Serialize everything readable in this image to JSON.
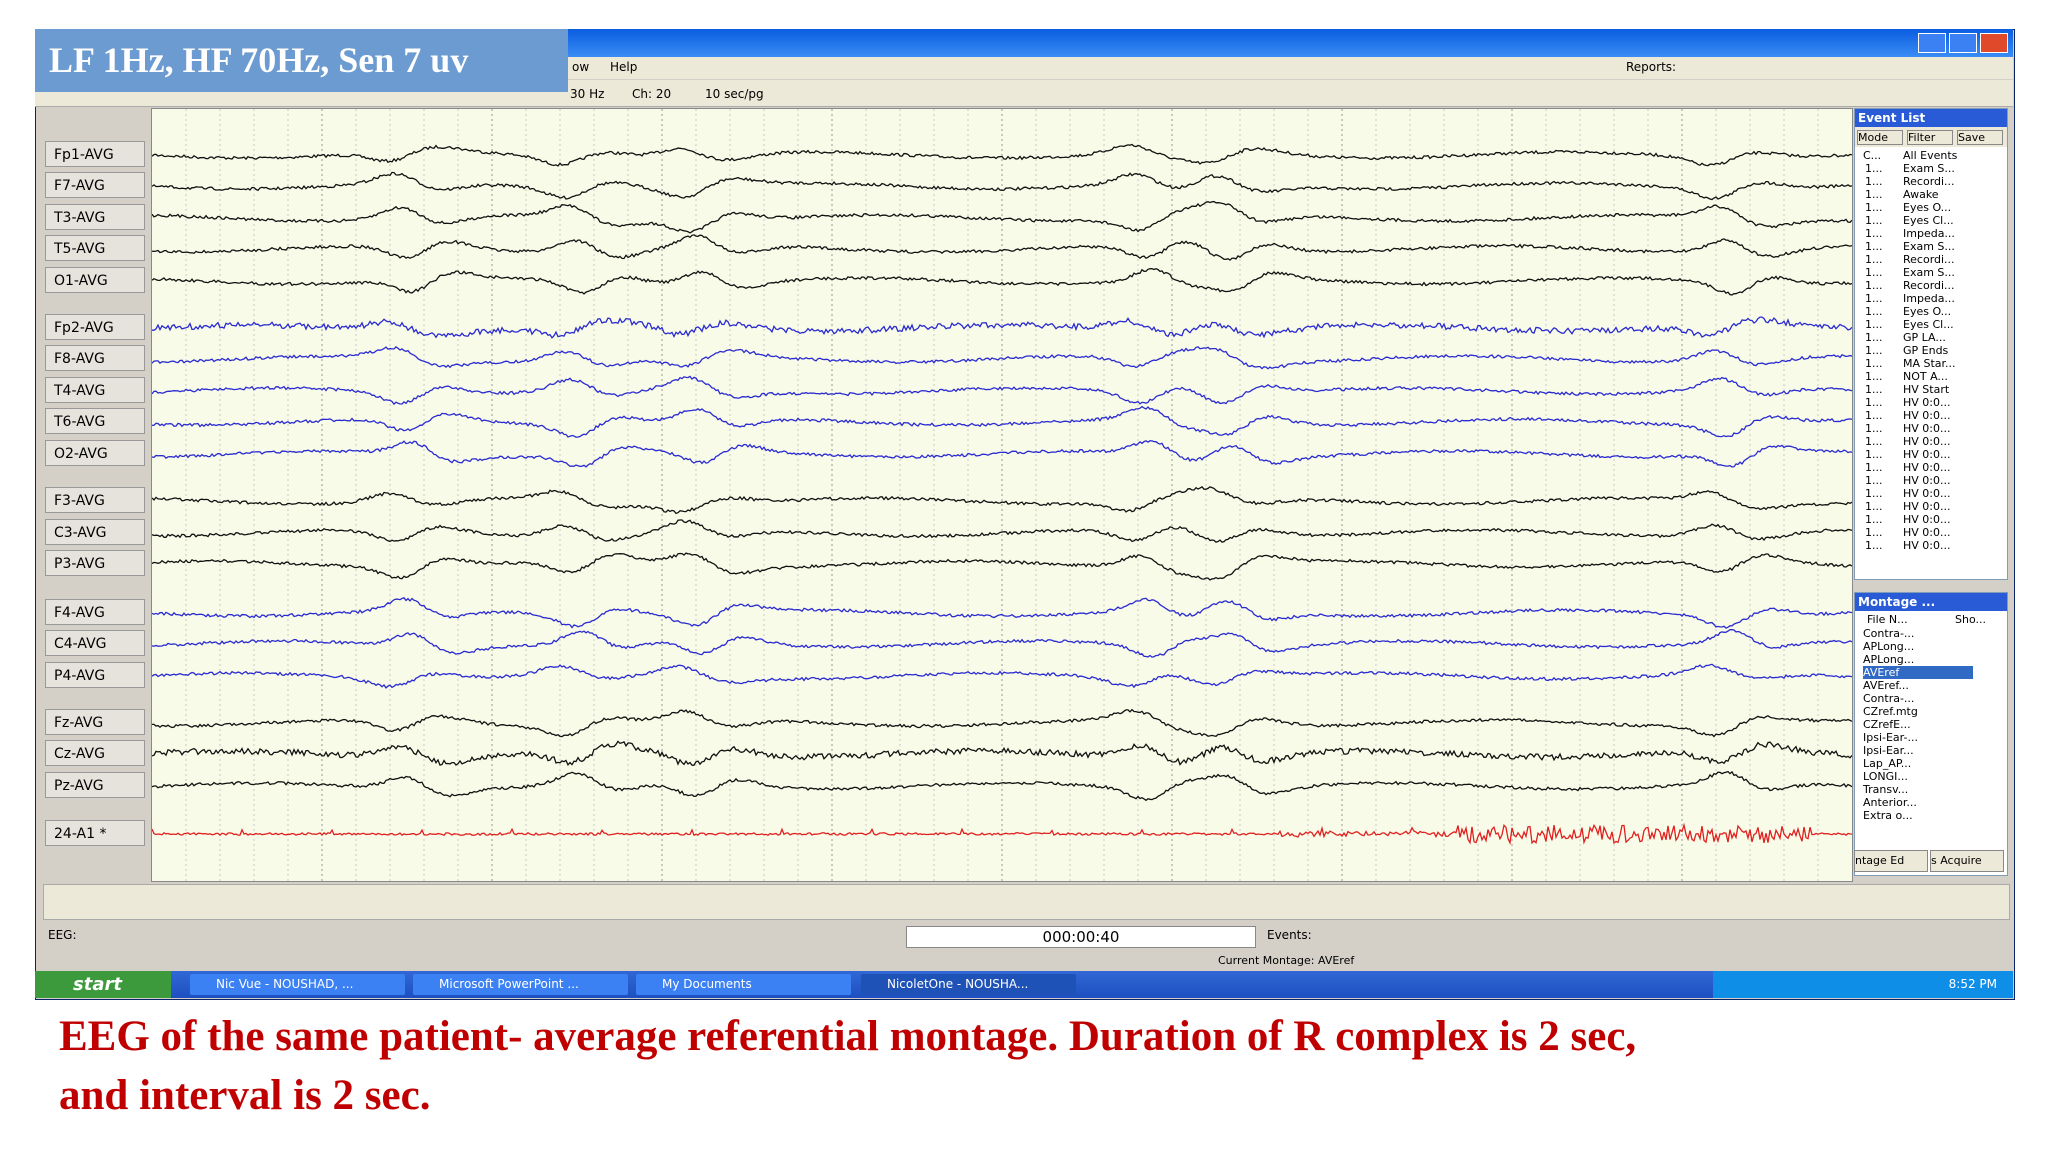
{
  "overlay_label": "LF 1Hz, HF 70Hz, Sen 7 uv",
  "menu": [
    "ow",
    "Help"
  ],
  "toolbar": {
    "reports": "Reports:",
    "filter": "30 Hz",
    "channels": "Ch: 20",
    "speed": "10 sec/pg"
  },
  "channels": [
    "Fp1-AVG",
    "F7-AVG",
    "T3-AVG",
    "T5-AVG",
    "O1-AVG",
    "Fp2-AVG",
    "F8-AVG",
    "T4-AVG",
    "T6-AVG",
    "O2-AVG",
    "F3-AVG",
    "C3-AVG",
    "P3-AVG",
    "F4-AVG",
    "C4-AVG",
    "P4-AVG",
    "Fz-AVG",
    "Cz-AVG",
    "Pz-AVG",
    "24-A1 *"
  ],
  "event_list": {
    "title": "Event List",
    "buttons": [
      "Mode",
      "Filter",
      "Save"
    ],
    "columns": [
      "C...",
      "All Events"
    ],
    "rows": [
      [
        "1...",
        "Exam S..."
      ],
      [
        "1...",
        "Recordi..."
      ],
      [
        "1...",
        "Awake"
      ],
      [
        "1...",
        "Eyes O..."
      ],
      [
        "1...",
        "Eyes Cl..."
      ],
      [
        "1...",
        "Impeda..."
      ],
      [
        "1...",
        "Exam S..."
      ],
      [
        "1...",
        "Recordi..."
      ],
      [
        "1...",
        "Exam S..."
      ],
      [
        "1...",
        "Recordi..."
      ],
      [
        "1...",
        "Impeda..."
      ],
      [
        "1...",
        "Eyes O..."
      ],
      [
        "1...",
        "Eyes Cl..."
      ],
      [
        "1...",
        "GP LA..."
      ],
      [
        "1...",
        "GP Ends"
      ],
      [
        "1...",
        "MA Star..."
      ],
      [
        "1...",
        "NOT A..."
      ],
      [
        "1...",
        "HV Start"
      ],
      [
        "1...",
        "HV 0:0..."
      ],
      [
        "1...",
        "HV 0:0..."
      ],
      [
        "1...",
        "HV 0:0..."
      ],
      [
        "1...",
        "HV 0:0..."
      ],
      [
        "1...",
        "HV 0:0..."
      ],
      [
        "1...",
        "HV 0:0..."
      ],
      [
        "1...",
        "HV 0:0..."
      ],
      [
        "1...",
        "HV 0:0..."
      ],
      [
        "1...",
        "HV 0:0..."
      ],
      [
        "1...",
        "HV 0:0..."
      ],
      [
        "1...",
        "HV 0:0..."
      ],
      [
        "1...",
        "HV 0:0..."
      ]
    ]
  },
  "montage": {
    "title": "Montage ...",
    "columns": [
      "File N...",
      "Sho..."
    ],
    "selected": 3,
    "items": [
      "Contra-...",
      "APLong...",
      "APLong...",
      "AVEref",
      "AVEref...",
      "Contra-...",
      "CZref.mtg",
      "CZrefE...",
      "Ipsi-Ear-...",
      "Ipsi-Ear...",
      "Lap_AP...",
      "LONGI...",
      "Transv...",
      "Anterior...",
      "Extra o..."
    ],
    "buttons": [
      "ntage Ed",
      "s Acquire"
    ]
  },
  "bottom_bar": {
    "eeg": "EEG:",
    "time": "000:00:40",
    "events": "Events:",
    "status": "Current Montage: AVEref"
  },
  "taskbar": {
    "start": "start",
    "items": [
      "Nic Vue - NOUSHAD, ...",
      "Microsoft PowerPoint ...",
      "My Documents",
      "NicoletOne - NOUSHA..."
    ],
    "clock": "8:52 PM"
  },
  "caption": [
    "EEG of the same patient- average referential montage. Duration of R complex is 2 sec,",
    "and interval is 2 sec."
  ]
}
